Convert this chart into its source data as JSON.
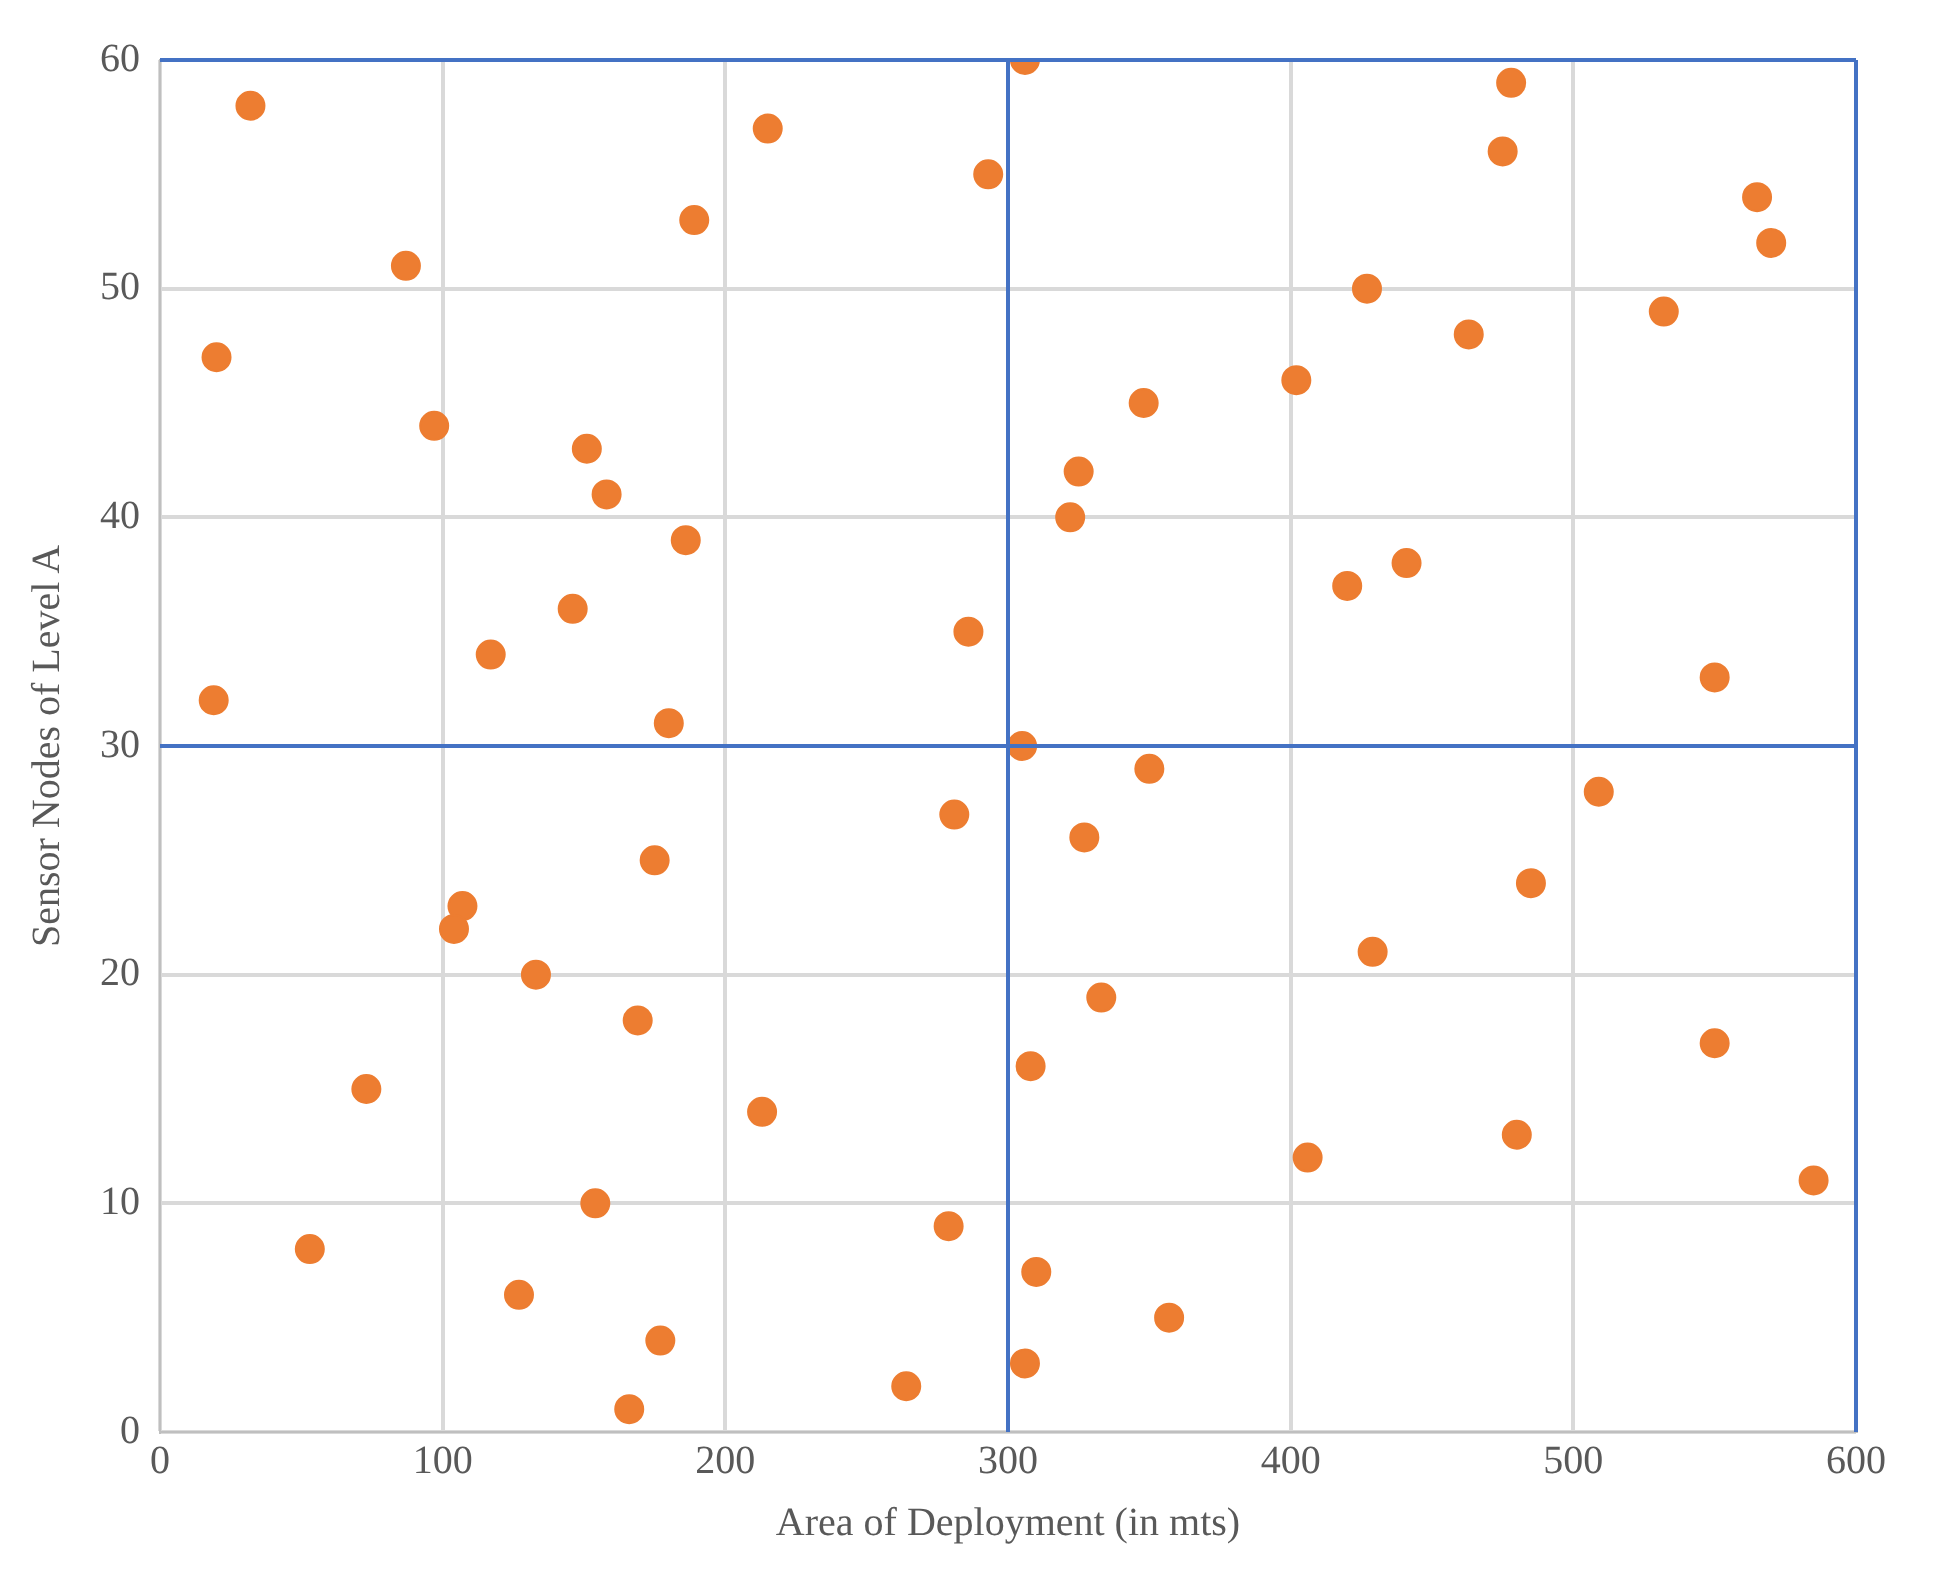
{
  "chart_data": {
    "type": "scatter",
    "xlabel": "Area of Deployment (in mts)",
    "ylabel": "Sensor Nodes of Level A",
    "x": [
      32,
      215,
      189,
      293,
      306,
      478,
      475,
      565,
      570,
      87,
      427,
      532,
      463,
      20,
      402,
      348,
      97,
      151,
      325,
      158,
      322,
      186,
      441,
      420,
      146,
      286,
      117,
      550,
      19,
      180,
      305,
      350,
      509,
      281,
      327,
      175,
      485,
      107,
      104,
      429,
      133,
      333,
      169,
      550,
      308,
      73,
      213,
      480,
      406,
      585,
      154,
      279,
      53,
      310,
      127,
      357,
      177,
      306,
      264,
      166
    ],
    "series": [
      {
        "color": "#ed7d31",
        "values": [
          58,
          57,
          53,
          55,
          60,
          59,
          56,
          54,
          52,
          51,
          50,
          49,
          48,
          47,
          46,
          45,
          44,
          43,
          42,
          41,
          40,
          39,
          38,
          37,
          36,
          35,
          34,
          33,
          32,
          31,
          30,
          29,
          28,
          27,
          26,
          25,
          24,
          23,
          22,
          21,
          20,
          19,
          18,
          17,
          16,
          15,
          14,
          13,
          12,
          11,
          10,
          9,
          8,
          7,
          6,
          5,
          4,
          3,
          2,
          1
        ]
      }
    ],
    "xlim": [
      0,
      600
    ],
    "xticks": [
      0,
      100,
      200,
      300,
      400,
      500,
      600
    ],
    "ylim": [
      0,
      60
    ],
    "yticks": [
      0,
      10,
      20,
      30,
      40,
      50,
      60
    ],
    "grid": true,
    "legend": false,
    "marker": "circle",
    "ref_lines": [
      {
        "axis": "x",
        "value": 300,
        "color": "#4472c4"
      },
      {
        "axis": "y",
        "value": 30,
        "color": "#4472c4"
      },
      {
        "axis": "x",
        "value": 600,
        "color": "#4472c4"
      },
      {
        "axis": "y",
        "value": 60,
        "color": "#4472c4"
      }
    ]
  }
}
